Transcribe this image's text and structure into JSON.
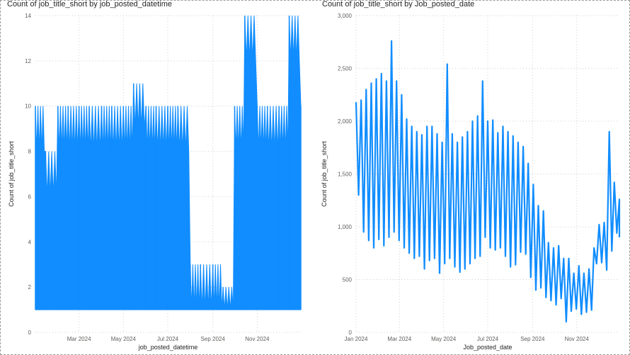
{
  "chart_data": [
    {
      "type": "area",
      "title": "Count of job_title_short by job_posted_datetime",
      "xlabel": "job_posted_datetime",
      "ylabel": "Count of job_title_short",
      "ylim": [
        0,
        14
      ],
      "yticks": [
        "0",
        "2",
        "4",
        "6",
        "8",
        "10",
        "12",
        "14"
      ],
      "xticks": [
        "Mar 2024",
        "May 2024",
        "Jul 2024",
        "Sep 2024",
        "Nov 2024"
      ],
      "color": "#118DFF",
      "grid": true,
      "series": [
        {
          "x": [
            "2024-01-01",
            "2024-01-15",
            "2024-02-01",
            "2024-02-15",
            "2024-03-01",
            "2024-03-15",
            "2024-04-01",
            "2024-04-15",
            "2024-05-01",
            "2024-05-15",
            "2024-06-01",
            "2024-06-15",
            "2024-07-01",
            "2024-07-15",
            "2024-08-01",
            "2024-08-15",
            "2024-09-01",
            "2024-09-15",
            "2024-10-01",
            "2024-10-15",
            "2024-11-01",
            "2024-11-15",
            "2024-12-01",
            "2024-12-15",
            "2024-12-31"
          ],
          "min": [
            1,
            1,
            1,
            1,
            1,
            1,
            1,
            1,
            1,
            1,
            1,
            1,
            1,
            1,
            1,
            1,
            1,
            1,
            1,
            1,
            1,
            1,
            1,
            1,
            1
          ],
          "max": [
            10,
            8,
            10,
            10,
            10,
            10,
            10,
            10,
            10,
            11,
            10,
            10,
            10,
            10,
            3,
            3,
            3,
            2,
            10,
            14,
            10,
            10,
            10,
            14,
            10
          ]
        }
      ]
    },
    {
      "type": "line",
      "title": "Count of job_title_short by Job_posted_date",
      "xlabel": "Job_posted_date",
      "ylabel": "Count of job_title_short",
      "ylim": [
        0,
        3000
      ],
      "yticks": [
        "0",
        "500",
        "1,000",
        "1,500",
        "2,000",
        "2,500",
        "3,000"
      ],
      "xticks": [
        "Jan 2024",
        "Mar 2024",
        "May 2024",
        "Jul 2024",
        "Sep 2024",
        "Nov 2024"
      ],
      "color": "#118DFF",
      "grid": true,
      "series": [
        {
          "x": [
            "2024-01-01",
            "2024-01-08",
            "2024-01-15",
            "2024-01-22",
            "2024-01-29",
            "2024-02-05",
            "2024-02-12",
            "2024-02-19",
            "2024-02-26",
            "2024-03-04",
            "2024-03-11",
            "2024-03-18",
            "2024-03-25",
            "2024-04-01",
            "2024-04-08",
            "2024-04-15",
            "2024-04-22",
            "2024-04-29",
            "2024-05-06",
            "2024-05-13",
            "2024-05-20",
            "2024-05-27",
            "2024-06-03",
            "2024-06-10",
            "2024-06-17",
            "2024-06-24",
            "2024-07-01",
            "2024-07-08",
            "2024-07-15",
            "2024-07-22",
            "2024-07-29",
            "2024-08-05",
            "2024-08-12",
            "2024-08-19",
            "2024-08-26",
            "2024-09-02",
            "2024-09-09",
            "2024-09-16",
            "2024-09-23",
            "2024-09-30",
            "2024-10-07",
            "2024-10-14",
            "2024-10-21",
            "2024-10-28",
            "2024-11-04",
            "2024-11-11",
            "2024-11-18",
            "2024-11-25",
            "2024-12-02",
            "2024-12-09",
            "2024-12-16",
            "2024-12-23",
            "2024-12-30"
          ],
          "high": [
            2180,
            2200,
            2300,
            2360,
            2400,
            2450,
            2380,
            2760,
            2380,
            2250,
            2020,
            1950,
            1900,
            1870,
            1950,
            1950,
            1880,
            1800,
            2540,
            1880,
            1800,
            1850,
            1900,
            2000,
            2050,
            2380,
            2000,
            2010,
            1890,
            1950,
            1900,
            1860,
            1800,
            1760,
            1600,
            1400,
            1200,
            1150,
            850,
            800,
            820,
            700,
            700,
            560,
            630,
            560,
            600,
            800,
            1020,
            1040,
            1900,
            1420,
            1260
          ],
          "low": [
            1300,
            950,
            870,
            800,
            880,
            820,
            900,
            950,
            870,
            800,
            750,
            700,
            720,
            600,
            680,
            700,
            560,
            650,
            700,
            620,
            570,
            600,
            650,
            700,
            720,
            900,
            800,
            780,
            800,
            720,
            620,
            640,
            760,
            740,
            520,
            400,
            420,
            330,
            300,
            260,
            320,
            100,
            200,
            220,
            170,
            190,
            210,
            650,
            660,
            590,
            770,
            940,
            900
          ]
        }
      ]
    }
  ]
}
